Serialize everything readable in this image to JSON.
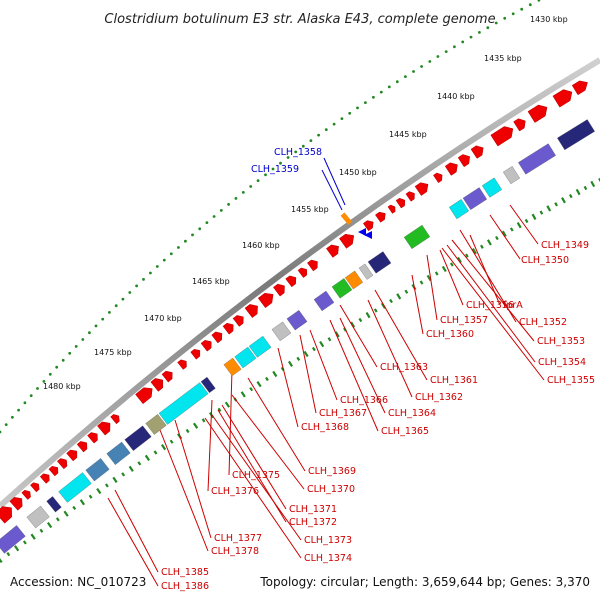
{
  "title": "Clostridium botulinum E3 str. Alaska E43, complete genome",
  "footer": {
    "accession": "Accession: NC_010723",
    "summary": "Topology: circular; Length: 3,659,644 bp; Genes: 3,370"
  },
  "ticks": [
    "1430 kbp",
    "1435 kbp",
    "1440 kbp",
    "1445 kbp",
    "1450 kbp",
    "1455 kbp",
    "1460 kbp",
    "1465 kbp",
    "1470 kbp",
    "1475 kbp",
    "1480 kbp"
  ],
  "gene_labels": [
    {
      "text": "CLH_1358",
      "color": "#0000cc"
    },
    {
      "text": "CLH_1359",
      "color": "#0000cc"
    },
    {
      "text": "CLH_1349",
      "color": "#cc0000"
    },
    {
      "text": "CLH_1350",
      "color": "#cc0000"
    },
    {
      "text": "CLH_1356",
      "color": "#cc0000"
    },
    {
      "text": "fprA",
      "color": "#cc0000"
    },
    {
      "text": "CLH_1357",
      "color": "#cc0000"
    },
    {
      "text": "CLH_1352",
      "color": "#cc0000"
    },
    {
      "text": "CLH_1360",
      "color": "#cc0000"
    },
    {
      "text": "CLH_1353",
      "color": "#cc0000"
    },
    {
      "text": "CLH_1354",
      "color": "#cc0000"
    },
    {
      "text": "CLH_1363",
      "color": "#cc0000"
    },
    {
      "text": "CLH_1355",
      "color": "#cc0000"
    },
    {
      "text": "CLH_1361",
      "color": "#cc0000"
    },
    {
      "text": "CLH_1362",
      "color": "#cc0000"
    },
    {
      "text": "CLH_1366",
      "color": "#cc0000"
    },
    {
      "text": "CLH_1367",
      "color": "#cc0000"
    },
    {
      "text": "CLH_1364",
      "color": "#cc0000"
    },
    {
      "text": "CLH_1368",
      "color": "#cc0000"
    },
    {
      "text": "CLH_1365",
      "color": "#cc0000"
    },
    {
      "text": "CLH_1369",
      "color": "#cc0000"
    },
    {
      "text": "CLH_1375",
      "color": "#cc0000"
    },
    {
      "text": "CLH_1376",
      "color": "#cc0000"
    },
    {
      "text": "CLH_1370",
      "color": "#cc0000"
    },
    {
      "text": "CLH_1371",
      "color": "#cc0000"
    },
    {
      "text": "CLH_1372",
      "color": "#cc0000"
    },
    {
      "text": "CLH_1377",
      "color": "#cc0000"
    },
    {
      "text": "CLH_1373",
      "color": "#cc0000"
    },
    {
      "text": "CLH_1378",
      "color": "#cc0000"
    },
    {
      "text": "CLH_1374",
      "color": "#cc0000"
    },
    {
      "text": "CLH_1385",
      "color": "#cc0000"
    },
    {
      "text": "CLH_1386",
      "color": "#cc0000"
    }
  ],
  "colors": {
    "backbone": "#808080",
    "forward_gene": "#ee0000",
    "reverse_gene": "#0000ee",
    "tick": "#228822",
    "leader_red": "#ee0000",
    "leader_blue": "#0000cc",
    "cog_cyan": "#00e5ee",
    "cog_purple": "#6a5acd",
    "cog_navy": "#27277a",
    "cog_green": "#22bb22",
    "cog_orange": "#ff8c00",
    "cog_grey": "#c0c0c0",
    "cog_steel": "#4682b4",
    "cog_olive": "#a0a070"
  }
}
